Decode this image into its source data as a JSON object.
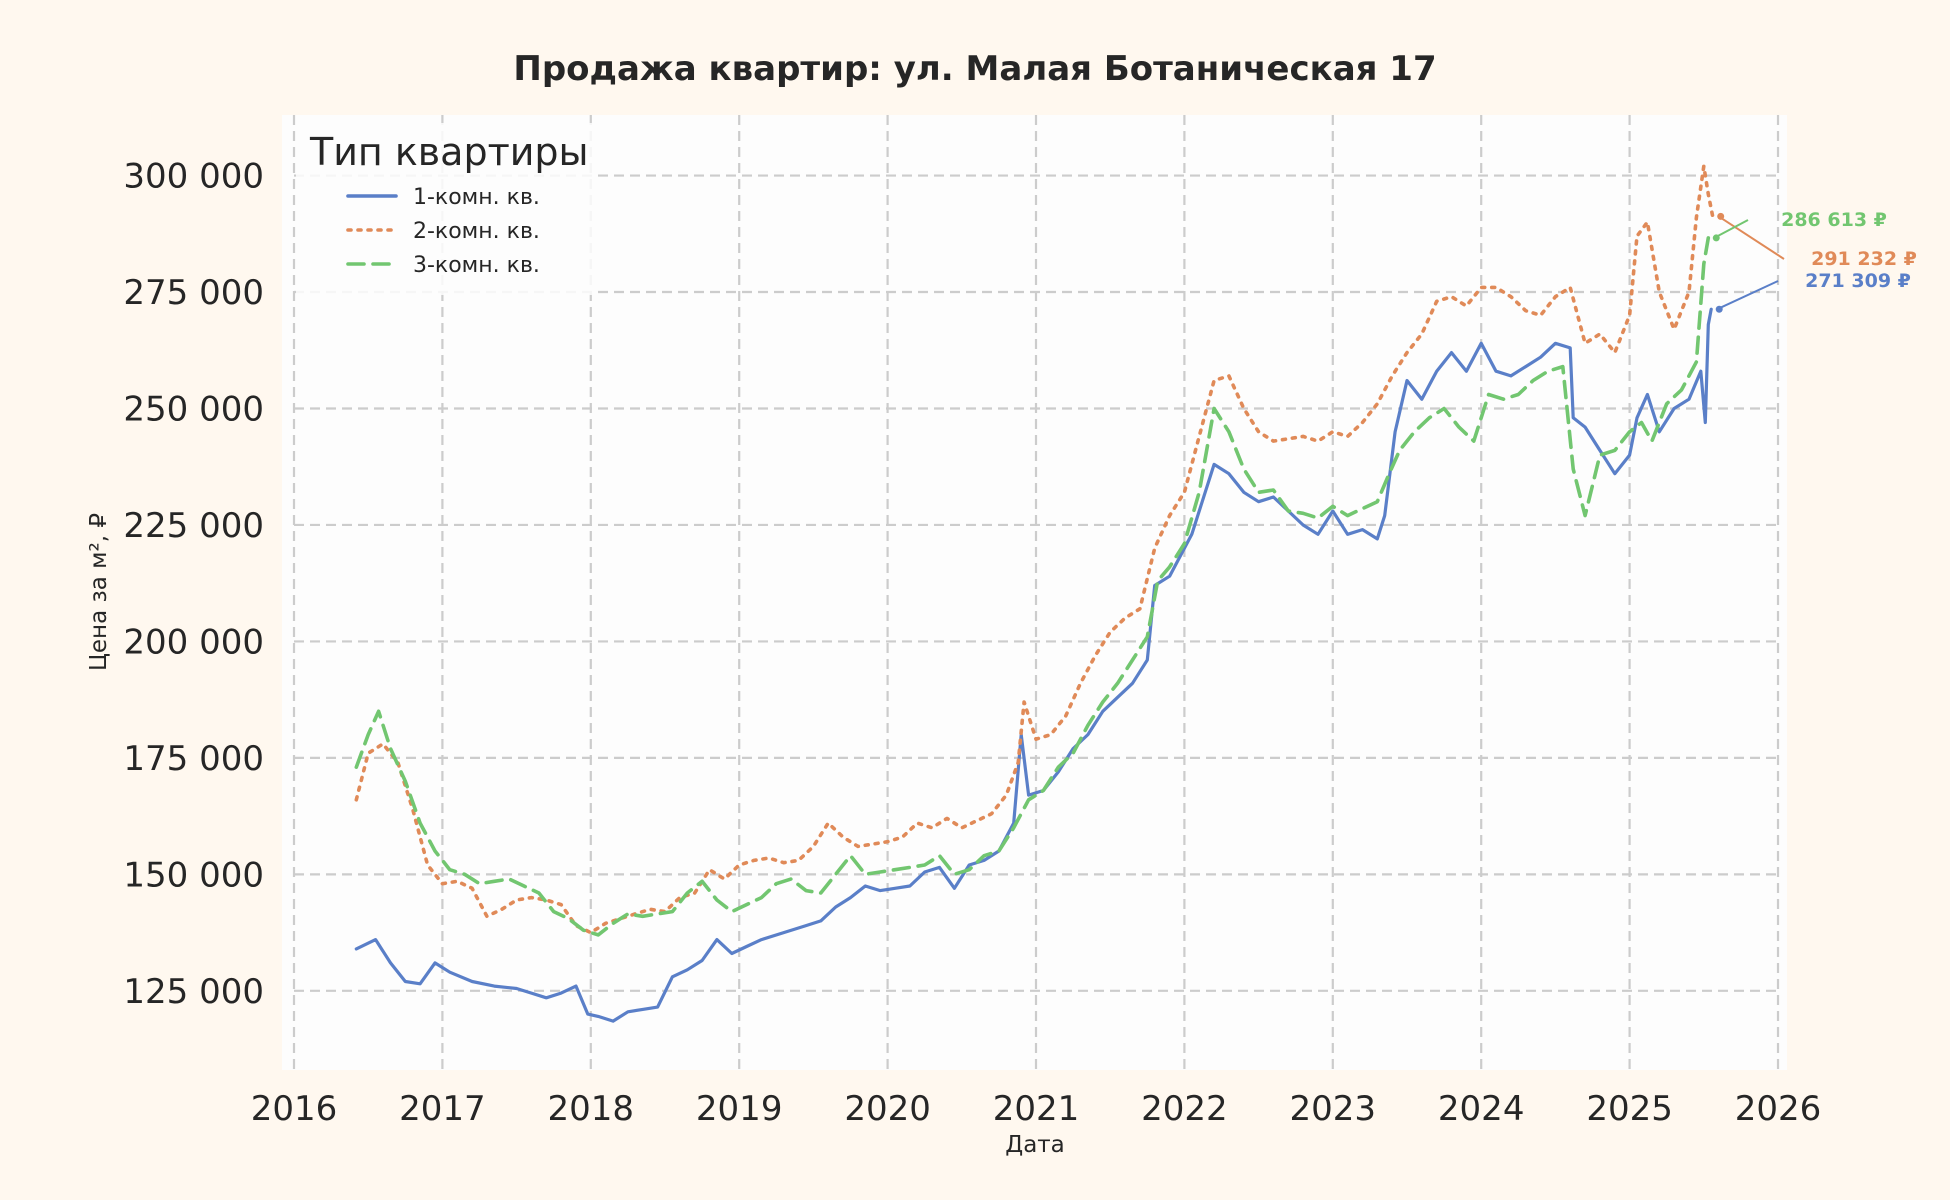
{
  "chart_data": {
    "type": "line",
    "title": "Продажа квартир: ул. Малая Ботаническая 17",
    "xlabel": "Дата",
    "ylabel": "Цена за м², ₽",
    "xlim": [
      2016,
      2026
    ],
    "ylim": [
      108000,
      313000
    ],
    "x_ticks": [
      "2016",
      "2017",
      "2018",
      "2019",
      "2020",
      "2021",
      "2022",
      "2023",
      "2024",
      "2025",
      "2026"
    ],
    "y_ticks": [
      "125 000",
      "150 000",
      "175 000",
      "200 000",
      "225 000",
      "250 000",
      "275 000",
      "300 000"
    ],
    "grid": true,
    "legend": {
      "title": "Тип квартиры",
      "placement": "top-left"
    },
    "series": [
      {
        "name": "1-комн. кв.",
        "color": "#5a7fc8",
        "style": "solid",
        "end_label": "271 309 ₽",
        "points": [
          [
            2016.42,
            134000
          ],
          [
            2016.55,
            136000
          ],
          [
            2016.65,
            131000
          ],
          [
            2016.75,
            127000
          ],
          [
            2016.85,
            126500
          ],
          [
            2016.95,
            131000
          ],
          [
            2017.05,
            129000
          ],
          [
            2017.2,
            127000
          ],
          [
            2017.35,
            126000
          ],
          [
            2017.5,
            125500
          ],
          [
            2017.6,
            124500
          ],
          [
            2017.7,
            123500
          ],
          [
            2017.8,
            124500
          ],
          [
            2017.9,
            126000
          ],
          [
            2017.98,
            120000
          ],
          [
            2018.05,
            119500
          ],
          [
            2018.15,
            118500
          ],
          [
            2018.25,
            120500
          ],
          [
            2018.35,
            121000
          ],
          [
            2018.45,
            121500
          ],
          [
            2018.55,
            128000
          ],
          [
            2018.65,
            129500
          ],
          [
            2018.75,
            131500
          ],
          [
            2018.85,
            136000
          ],
          [
            2018.95,
            133000
          ],
          [
            2019.05,
            134500
          ],
          [
            2019.15,
            136000
          ],
          [
            2019.3,
            137500
          ],
          [
            2019.45,
            139000
          ],
          [
            2019.55,
            140000
          ],
          [
            2019.65,
            143000
          ],
          [
            2019.75,
            145000
          ],
          [
            2019.85,
            147500
          ],
          [
            2019.95,
            146500
          ],
          [
            2020.05,
            147000
          ],
          [
            2020.15,
            147500
          ],
          [
            2020.25,
            150500
          ],
          [
            2020.35,
            151500
          ],
          [
            2020.45,
            147000
          ],
          [
            2020.55,
            152000
          ],
          [
            2020.65,
            153000
          ],
          [
            2020.75,
            155000
          ],
          [
            2020.85,
            161000
          ],
          [
            2020.9,
            180000
          ],
          [
            2020.95,
            167000
          ],
          [
            2021.05,
            168000
          ],
          [
            2021.15,
            172000
          ],
          [
            2021.25,
            177000
          ],
          [
            2021.35,
            180000
          ],
          [
            2021.45,
            185000
          ],
          [
            2021.55,
            188000
          ],
          [
            2021.65,
            191000
          ],
          [
            2021.75,
            196000
          ],
          [
            2021.8,
            212000
          ],
          [
            2021.9,
            214000
          ],
          [
            2022.0,
            220000
          ],
          [
            2022.05,
            223000
          ],
          [
            2022.12,
            230000
          ],
          [
            2022.2,
            238000
          ],
          [
            2022.3,
            236000
          ],
          [
            2022.4,
            232000
          ],
          [
            2022.5,
            230000
          ],
          [
            2022.6,
            231000
          ],
          [
            2022.7,
            228000
          ],
          [
            2022.8,
            225000
          ],
          [
            2022.9,
            223000
          ],
          [
            2023.0,
            228000
          ],
          [
            2023.1,
            223000
          ],
          [
            2023.2,
            224000
          ],
          [
            2023.3,
            222000
          ],
          [
            2023.35,
            227000
          ],
          [
            2023.42,
            245000
          ],
          [
            2023.5,
            256000
          ],
          [
            2023.6,
            252000
          ],
          [
            2023.7,
            258000
          ],
          [
            2023.8,
            262000
          ],
          [
            2023.9,
            258000
          ],
          [
            2024.0,
            264000
          ],
          [
            2024.1,
            258000
          ],
          [
            2024.2,
            257000
          ],
          [
            2024.3,
            259000
          ],
          [
            2024.4,
            261000
          ],
          [
            2024.5,
            264000
          ],
          [
            2024.6,
            263000
          ],
          [
            2024.62,
            248000
          ],
          [
            2024.7,
            246000
          ],
          [
            2024.8,
            241000
          ],
          [
            2024.9,
            236000
          ],
          [
            2025.0,
            240000
          ],
          [
            2025.05,
            248000
          ],
          [
            2025.12,
            253000
          ],
          [
            2025.2,
            245000
          ],
          [
            2025.3,
            250000
          ],
          [
            2025.4,
            252000
          ],
          [
            2025.48,
            258000
          ],
          [
            2025.51,
            247000
          ],
          [
            2025.53,
            268000
          ],
          [
            2025.55,
            271309
          ]
        ]
      },
      {
        "name": "2-комн. кв.",
        "color": "#e08a58",
        "style": "dotted",
        "end_label": "291 232 ₽",
        "points": [
          [
            2016.42,
            166000
          ],
          [
            2016.5,
            176000
          ],
          [
            2016.6,
            178000
          ],
          [
            2016.7,
            174000
          ],
          [
            2016.8,
            164000
          ],
          [
            2016.9,
            152000
          ],
          [
            2017.0,
            148000
          ],
          [
            2017.1,
            148500
          ],
          [
            2017.2,
            147000
          ],
          [
            2017.3,
            141000
          ],
          [
            2017.4,
            142500
          ],
          [
            2017.5,
            144500
          ],
          [
            2017.6,
            145000
          ],
          [
            2017.7,
            144500
          ],
          [
            2017.8,
            143500
          ],
          [
            2017.9,
            139000
          ],
          [
            2018.0,
            137500
          ],
          [
            2018.1,
            139500
          ],
          [
            2018.2,
            140500
          ],
          [
            2018.3,
            141500
          ],
          [
            2018.4,
            142500
          ],
          [
            2018.5,
            142000
          ],
          [
            2018.6,
            145000
          ],
          [
            2018.7,
            146000
          ],
          [
            2018.8,
            151000
          ],
          [
            2018.9,
            149000
          ],
          [
            2019.0,
            152000
          ],
          [
            2019.1,
            153000
          ],
          [
            2019.2,
            153500
          ],
          [
            2019.3,
            152500
          ],
          [
            2019.4,
            153000
          ],
          [
            2019.5,
            156000
          ],
          [
            2019.6,
            161000
          ],
          [
            2019.7,
            158000
          ],
          [
            2019.8,
            156000
          ],
          [
            2019.9,
            156500
          ],
          [
            2020.0,
            157000
          ],
          [
            2020.1,
            158000
          ],
          [
            2020.2,
            161000
          ],
          [
            2020.3,
            160000
          ],
          [
            2020.4,
            162000
          ],
          [
            2020.5,
            160000
          ],
          [
            2020.6,
            161500
          ],
          [
            2020.7,
            163000
          ],
          [
            2020.8,
            167000
          ],
          [
            2020.88,
            174000
          ],
          [
            2020.92,
            187000
          ],
          [
            2021.0,
            179000
          ],
          [
            2021.1,
            180000
          ],
          [
            2021.2,
            184000
          ],
          [
            2021.3,
            191000
          ],
          [
            2021.4,
            197000
          ],
          [
            2021.5,
            202000
          ],
          [
            2021.6,
            205000
          ],
          [
            2021.7,
            207000
          ],
          [
            2021.8,
            220000
          ],
          [
            2021.9,
            227000
          ],
          [
            2022.0,
            232000
          ],
          [
            2022.1,
            244000
          ],
          [
            2022.2,
            256000
          ],
          [
            2022.3,
            257000
          ],
          [
            2022.4,
            250000
          ],
          [
            2022.5,
            245000
          ],
          [
            2022.6,
            243000
          ],
          [
            2022.7,
            243500
          ],
          [
            2022.8,
            244000
          ],
          [
            2022.9,
            243000
          ],
          [
            2023.0,
            245000
          ],
          [
            2023.1,
            244000
          ],
          [
            2023.2,
            247000
          ],
          [
            2023.3,
            251000
          ],
          [
            2023.4,
            257000
          ],
          [
            2023.5,
            262000
          ],
          [
            2023.6,
            266000
          ],
          [
            2023.7,
            273000
          ],
          [
            2023.8,
            274000
          ],
          [
            2023.9,
            272000
          ],
          [
            2024.0,
            276000
          ],
          [
            2024.1,
            276000
          ],
          [
            2024.2,
            274000
          ],
          [
            2024.3,
            271000
          ],
          [
            2024.4,
            270000
          ],
          [
            2024.5,
            274000
          ],
          [
            2024.6,
            276000
          ],
          [
            2024.7,
            264000
          ],
          [
            2024.8,
            266000
          ],
          [
            2024.9,
            262000
          ],
          [
            2025.0,
            270000
          ],
          [
            2025.05,
            287000
          ],
          [
            2025.12,
            290000
          ],
          [
            2025.2,
            275000
          ],
          [
            2025.3,
            267000
          ],
          [
            2025.4,
            275000
          ],
          [
            2025.45,
            291000
          ],
          [
            2025.5,
            302000
          ],
          [
            2025.53,
            296000
          ],
          [
            2025.56,
            291232
          ]
        ]
      },
      {
        "name": "3-комн. кв.",
        "color": "#72c670",
        "style": "dashed",
        "end_label": "286 613 ₽",
        "points": [
          [
            2016.42,
            173000
          ],
          [
            2016.5,
            180000
          ],
          [
            2016.57,
            185000
          ],
          [
            2016.65,
            177000
          ],
          [
            2016.75,
            170000
          ],
          [
            2016.85,
            161000
          ],
          [
            2016.95,
            155000
          ],
          [
            2017.05,
            151000
          ],
          [
            2017.15,
            150000
          ],
          [
            2017.25,
            148000
          ],
          [
            2017.35,
            148500
          ],
          [
            2017.45,
            149000
          ],
          [
            2017.55,
            147500
          ],
          [
            2017.65,
            146000
          ],
          [
            2017.75,
            142000
          ],
          [
            2017.85,
            140500
          ],
          [
            2017.95,
            138000
          ],
          [
            2018.05,
            137000
          ],
          [
            2018.15,
            139500
          ],
          [
            2018.25,
            141500
          ],
          [
            2018.35,
            141000
          ],
          [
            2018.45,
            141500
          ],
          [
            2018.55,
            142000
          ],
          [
            2018.65,
            146000
          ],
          [
            2018.75,
            148500
          ],
          [
            2018.85,
            144500
          ],
          [
            2018.95,
            142000
          ],
          [
            2019.05,
            143500
          ],
          [
            2019.15,
            145000
          ],
          [
            2019.25,
            148000
          ],
          [
            2019.35,
            149000
          ],
          [
            2019.45,
            146500
          ],
          [
            2019.55,
            146000
          ],
          [
            2019.65,
            150000
          ],
          [
            2019.75,
            154000
          ],
          [
            2019.85,
            150000
          ],
          [
            2019.95,
            150500
          ],
          [
            2020.05,
            151000
          ],
          [
            2020.15,
            151500
          ],
          [
            2020.25,
            152000
          ],
          [
            2020.35,
            154000
          ],
          [
            2020.45,
            150000
          ],
          [
            2020.55,
            151000
          ],
          [
            2020.65,
            154000
          ],
          [
            2020.75,
            155000
          ],
          [
            2020.85,
            160000
          ],
          [
            2020.95,
            166000
          ],
          [
            2021.05,
            168000
          ],
          [
            2021.15,
            173000
          ],
          [
            2021.25,
            176000
          ],
          [
            2021.35,
            182000
          ],
          [
            2021.45,
            187000
          ],
          [
            2021.55,
            191000
          ],
          [
            2021.65,
            196000
          ],
          [
            2021.75,
            201000
          ],
          [
            2021.82,
            213000
          ],
          [
            2021.9,
            216000
          ],
          [
            2022.0,
            221000
          ],
          [
            2022.1,
            232000
          ],
          [
            2022.2,
            250000
          ],
          [
            2022.3,
            245000
          ],
          [
            2022.4,
            237000
          ],
          [
            2022.5,
            232000
          ],
          [
            2022.6,
            232500
          ],
          [
            2022.7,
            228000
          ],
          [
            2022.8,
            227500
          ],
          [
            2022.9,
            226500
          ],
          [
            2023.0,
            229000
          ],
          [
            2023.1,
            227000
          ],
          [
            2023.2,
            228500
          ],
          [
            2023.3,
            230000
          ],
          [
            2023.38,
            236000
          ],
          [
            2023.45,
            241000
          ],
          [
            2023.55,
            245000
          ],
          [
            2023.65,
            248000
          ],
          [
            2023.75,
            250000
          ],
          [
            2023.85,
            246000
          ],
          [
            2023.95,
            243000
          ],
          [
            2024.05,
            253000
          ],
          [
            2024.15,
            252000
          ],
          [
            2024.25,
            253000
          ],
          [
            2024.35,
            256000
          ],
          [
            2024.45,
            258000
          ],
          [
            2024.55,
            259000
          ],
          [
            2024.62,
            237000
          ],
          [
            2024.7,
            227000
          ],
          [
            2024.8,
            240000
          ],
          [
            2024.9,
            241000
          ],
          [
            2025.0,
            245000
          ],
          [
            2025.08,
            247000
          ],
          [
            2025.15,
            243000
          ],
          [
            2025.25,
            251000
          ],
          [
            2025.35,
            254000
          ],
          [
            2025.45,
            260000
          ],
          [
            2025.5,
            281000
          ],
          [
            2025.53,
            286613
          ]
        ]
      }
    ]
  }
}
